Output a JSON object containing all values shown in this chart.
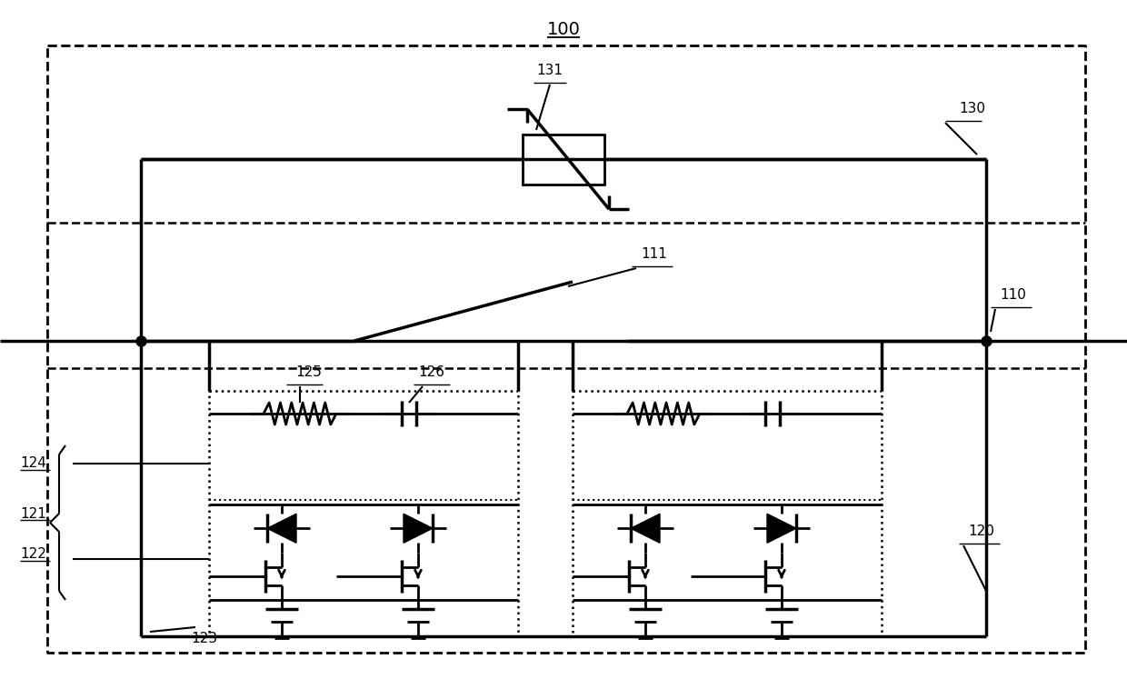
{
  "bg_color": "#ffffff",
  "line_color": "#000000",
  "fig_width": 12.4,
  "fig_height": 7.47,
  "dpi": 100,
  "label_100": "100",
  "label_110": "110",
  "label_111": "111",
  "label_120": "120",
  "label_121": "121",
  "label_122": "122",
  "label_123": "123",
  "label_124": "124",
  "label_125": "125",
  "label_126": "126",
  "label_130": "130",
  "label_131": "131"
}
